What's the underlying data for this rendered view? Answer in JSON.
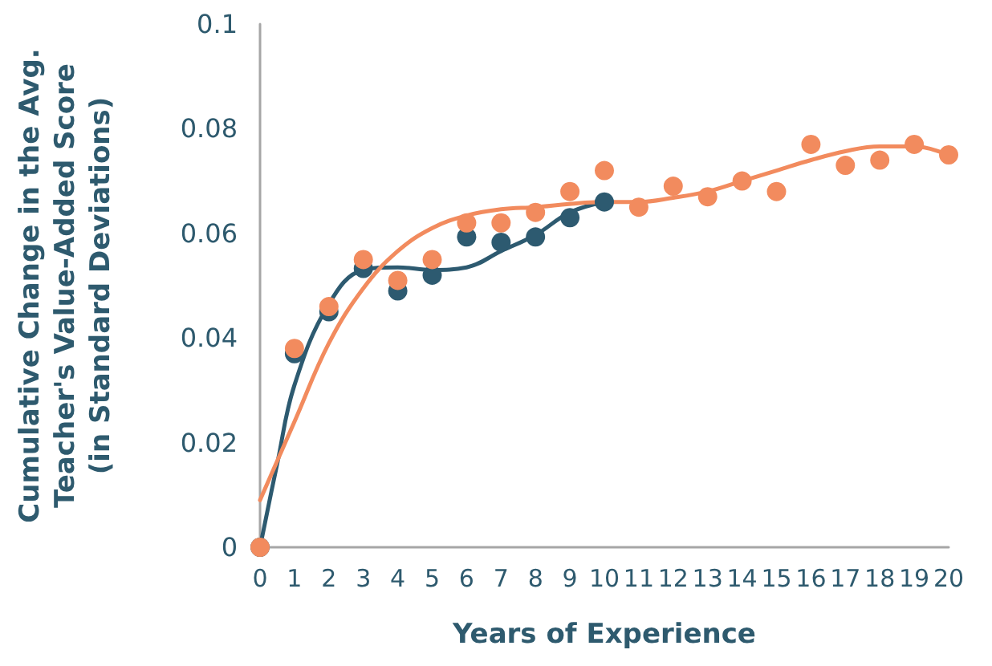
{
  "chart_data": {
    "type": "scatter",
    "xlabel": "Years of Experience",
    "ylabel": "Cumulative Change in the Avg.\nTeacher's Value-Added Score\n(in Standard Deviations)",
    "xlim": [
      0,
      20
    ],
    "xticks": [
      0,
      1,
      2,
      3,
      4,
      5,
      6,
      7,
      8,
      9,
      10,
      11,
      12,
      13,
      14,
      15,
      16,
      17,
      18,
      19,
      20
    ],
    "ylim": [
      0,
      0.1
    ],
    "yticks": [
      0,
      0.02,
      0.04,
      0.06,
      0.08,
      0.1
    ],
    "grid": false,
    "marker": "circle",
    "series": [
      {
        "type": "line",
        "color": "#2d5a70",
        "x": [
          0,
          0.5,
          1,
          2,
          3,
          4,
          5,
          6,
          7,
          8,
          9,
          10
        ],
        "values": [
          0,
          0.016,
          0.031,
          0.0465,
          0.053,
          0.0535,
          0.053,
          0.0535,
          0.0566,
          0.0597,
          0.064,
          0.066
        ],
        "marker": "none"
      },
      {
        "type": "line",
        "color": "#f28b5e",
        "x": [
          0,
          1,
          2,
          3,
          4,
          5,
          6,
          7,
          8,
          10,
          11,
          12,
          13,
          14,
          15,
          16,
          17,
          18,
          19,
          20
        ],
        "values": [
          0.009,
          0.024,
          0.039,
          0.0495,
          0.0566,
          0.061,
          0.0634,
          0.0646,
          0.065,
          0.066,
          0.066,
          0.0668,
          0.068,
          0.07,
          0.072,
          0.074,
          0.0757,
          0.0766,
          0.0766,
          0.075
        ],
        "marker": "none"
      },
      {
        "color": "#2d5a70",
        "x": [
          0,
          1,
          2,
          3,
          4,
          5,
          6,
          7,
          8,
          9,
          10
        ],
        "values": [
          0,
          0.037,
          0.045,
          0.0533,
          0.049,
          0.052,
          0.0593,
          0.0583,
          0.0593,
          0.063,
          0.066
        ]
      },
      {
        "color": "#f28b5e",
        "x": [
          0,
          1,
          2,
          3,
          4,
          5,
          6,
          7,
          8,
          9,
          10,
          11,
          12,
          13,
          14,
          15,
          16,
          17,
          18,
          19,
          20
        ],
        "values": [
          0,
          0.038,
          0.046,
          0.055,
          0.051,
          0.055,
          0.062,
          0.062,
          0.064,
          0.068,
          0.072,
          0.065,
          0.069,
          0.067,
          0.07,
          0.068,
          0.077,
          0.073,
          0.074,
          0.077,
          0.075
        ]
      }
    ]
  }
}
